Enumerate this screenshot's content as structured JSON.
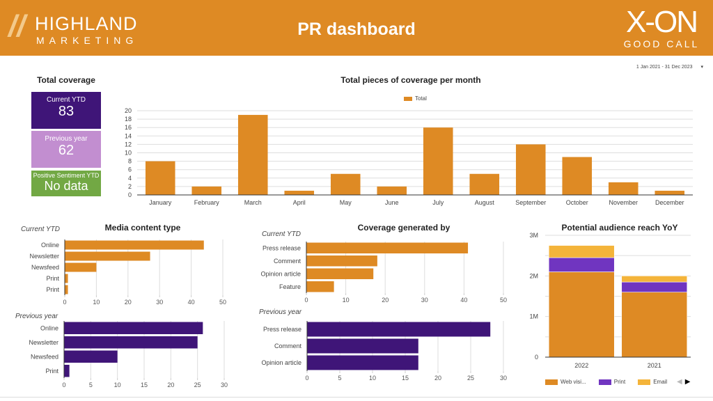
{
  "header": {
    "title": "PR dashboard",
    "left_logo": {
      "line1": "HIGHLAND",
      "line2": "MARKETING"
    },
    "right_logo": {
      "line1": "X-ON",
      "line2": "GOOD CALL"
    },
    "bg": "#DE8A24"
  },
  "date_range": {
    "label": "1 Jan 2021 - 31 Dec 2023",
    "caret": "▾"
  },
  "total_coverage": {
    "title": "Total coverage",
    "cards": [
      {
        "label": "Current YTD",
        "value": "83",
        "color": "#3F1578"
      },
      {
        "label": "Previous year",
        "value": "62",
        "color": "#C28ED0"
      },
      {
        "label": "Positive Sentiment YTD",
        "value": "No data",
        "color": "#72A844"
      }
    ]
  },
  "media_content": {
    "title": "Media content type",
    "current_label": "Current YTD",
    "previous_label": "Previous year"
  },
  "coverage_by": {
    "title": "Coverage generated by",
    "current_label": "Current YTD",
    "previous_label": "Previous year"
  },
  "chart_data": [
    {
      "id": "monthly",
      "type": "bar",
      "title": "Total pieces of coverage per month",
      "legend": [
        "Total"
      ],
      "legend_position": "top",
      "categories": [
        "January",
        "February",
        "March",
        "April",
        "May",
        "June",
        "July",
        "August",
        "September",
        "October",
        "November",
        "December"
      ],
      "values": [
        8,
        2,
        19,
        1,
        5,
        2,
        16,
        5,
        12,
        9,
        3,
        1
      ],
      "ylim": [
        0,
        20
      ],
      "yticks": [
        0,
        2,
        4,
        6,
        8,
        10,
        12,
        14,
        16,
        18,
        20
      ],
      "color": "#DE8A24"
    },
    {
      "id": "media_current",
      "type": "bar",
      "orientation": "horizontal",
      "categories": [
        "Online",
        "Newsletter",
        "Newsfeed",
        "Print",
        "Print"
      ],
      "values": [
        44,
        27,
        10,
        1,
        1
      ],
      "xlim": [
        0,
        50
      ],
      "xticks": [
        0,
        10,
        20,
        30,
        40,
        50
      ],
      "color": "#DE8A24"
    },
    {
      "id": "media_previous",
      "type": "bar",
      "orientation": "horizontal",
      "categories": [
        "Online",
        "Newsletter",
        "Newsfeed",
        "Print"
      ],
      "values": [
        26,
        25,
        10,
        1
      ],
      "xlim": [
        0,
        30
      ],
      "xticks": [
        0,
        5,
        10,
        15,
        20,
        25,
        30
      ],
      "color": "#3F1578"
    },
    {
      "id": "cov_current",
      "type": "bar",
      "orientation": "horizontal",
      "categories": [
        "Press release",
        "Comment",
        "Opinion article",
        "Feature"
      ],
      "values": [
        41,
        18,
        17,
        7
      ],
      "xlim": [
        0,
        50
      ],
      "xticks": [
        0,
        10,
        20,
        30,
        40,
        50
      ],
      "color": "#DE8A24"
    },
    {
      "id": "cov_previous",
      "type": "bar",
      "orientation": "horizontal",
      "categories": [
        "Press release",
        "Comment",
        "Opinion article"
      ],
      "values": [
        28,
        17,
        17
      ],
      "xlim": [
        0,
        30
      ],
      "xticks": [
        0,
        5,
        10,
        15,
        20,
        25,
        30
      ],
      "color": "#3F1578"
    },
    {
      "id": "audience",
      "type": "bar",
      "stacked": true,
      "title": "Potential audience reach YoY",
      "categories": [
        "2022",
        "2021"
      ],
      "series": [
        {
          "name": "Web visi...",
          "values": [
            2100000,
            1600000
          ],
          "color": "#DE8A24"
        },
        {
          "name": "Print",
          "values": [
            350000,
            250000
          ],
          "color": "#7035C0"
        },
        {
          "name": "Email",
          "values": [
            300000,
            150000
          ],
          "color": "#F4B43A"
        }
      ],
      "ylim": [
        0,
        3000000
      ],
      "yticks": [
        0,
        1000000,
        2000000,
        3000000
      ],
      "ytick_labels": [
        "0",
        "1M",
        "2M",
        "3M"
      ],
      "legend_position": "bottom"
    }
  ]
}
